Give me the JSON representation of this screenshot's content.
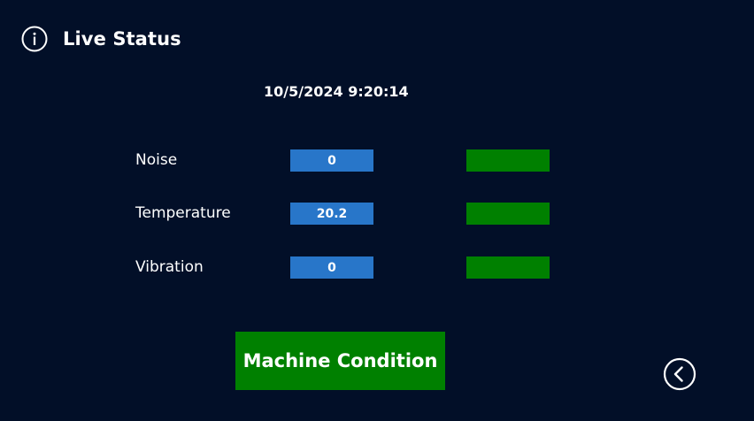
{
  "header": {
    "title": "Live Status",
    "icon": "info-icon"
  },
  "timestamp": "10/5/2024 9:20:14",
  "metrics": [
    {
      "label": "Noise",
      "value": "0",
      "status_color": "#008000"
    },
    {
      "label": "Temperature",
      "value": "20.2",
      "status_color": "#008000"
    },
    {
      "label": "Vibration",
      "value": "0",
      "status_color": "#008000"
    }
  ],
  "condition_button": {
    "label": "Machine Condition",
    "color": "#008000"
  },
  "navigation": {
    "back_icon": "chevron-left-circle-icon"
  },
  "colors": {
    "background": "#020f28",
    "value_box": "#2876c9",
    "status_ok": "#008000"
  }
}
